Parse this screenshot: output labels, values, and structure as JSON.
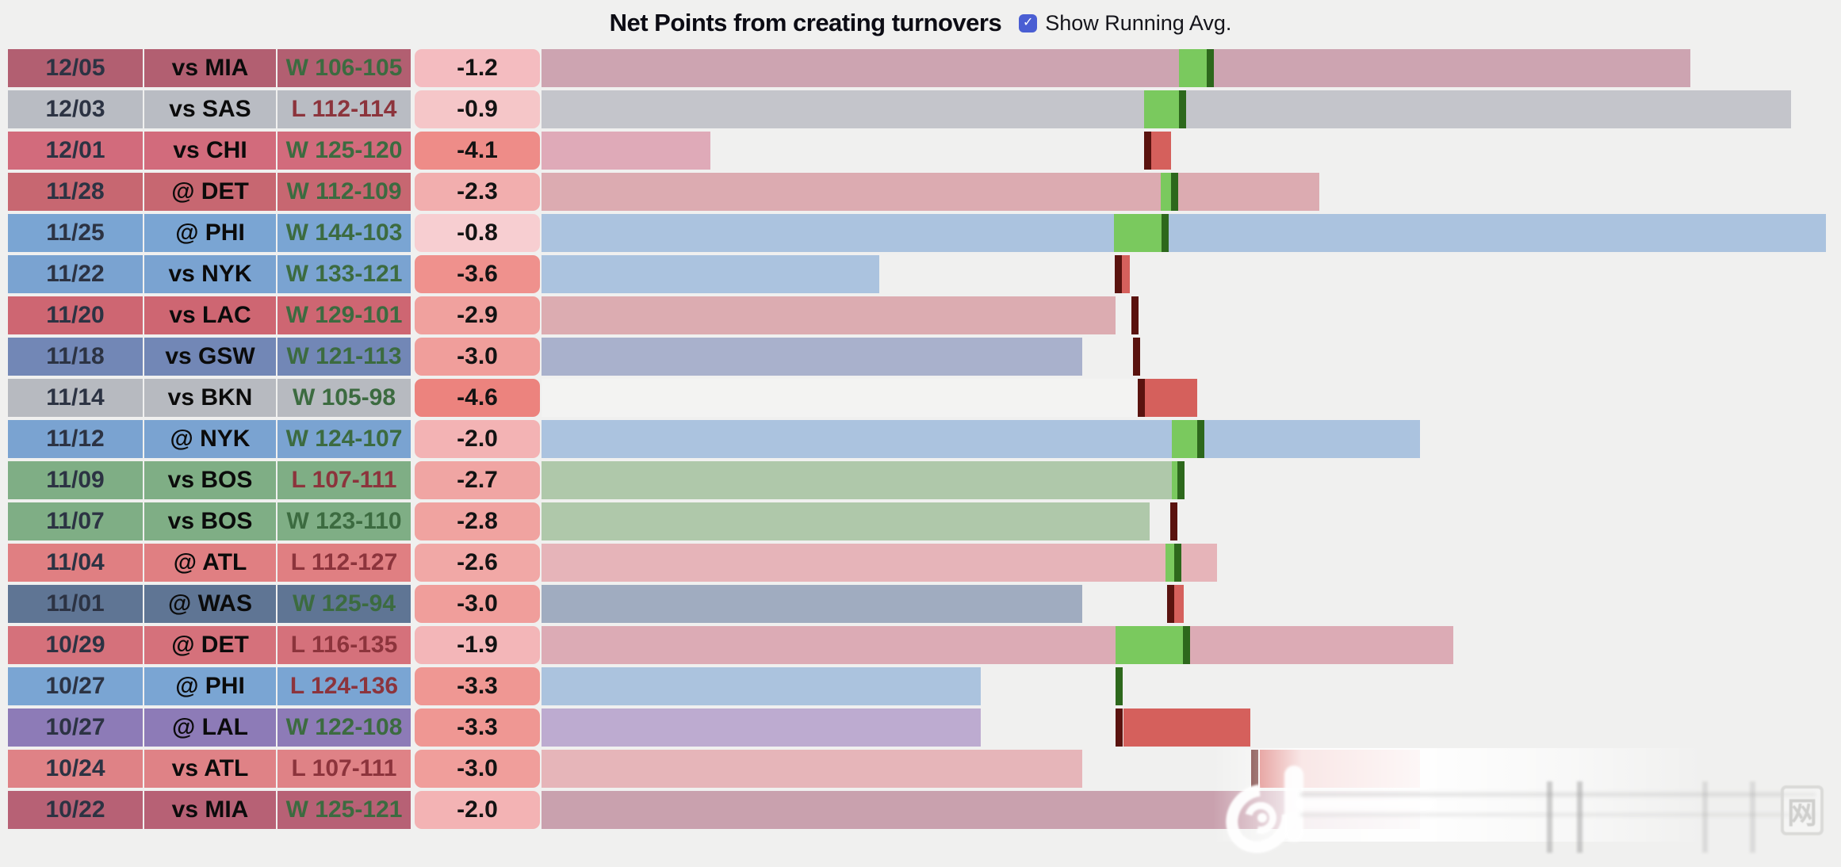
{
  "page": {
    "bg": "#f0f0ef"
  },
  "header": {
    "title": "Net Points from creating turnovers",
    "checkbox_label": "Show Running Avg.",
    "checkbox_checked": true,
    "checkbox_color": "#4a5ed3",
    "check_glyph": "✓"
  },
  "colors": {
    "seg_green": "#7ac95e",
    "line_green": "#2d681c",
    "seg_red": "#d5605c",
    "line_red": "#5a130f",
    "win_text": "#3c6b40",
    "loss_text": "#8c343c"
  },
  "watermark": {
    "grid_char": "网"
  },
  "chart_data": {
    "type": "bar",
    "title": "Net Points from creating turnovers",
    "orientation": "horizontal",
    "legend": "Show Running Avg.",
    "columns": [
      "date",
      "opponent",
      "result",
      "running_avg_value"
    ],
    "rows": [
      {
        "date": "12/05",
        "opp": "vs MIA",
        "result": "W 106-105",
        "win": true,
        "value": "-1.2",
        "team_color": "#b25f71",
        "bar_color": "#cda4b1",
        "value_bg": "#f4bcc0",
        "bar_frac": 0.8946,
        "line_frac": 0.5176,
        "line_color": "green",
        "seg_start": 0.4966,
        "seg_end": 0.5176,
        "seg_color": "green"
      },
      {
        "date": "12/03",
        "opp": "vs SAS",
        "result": "L 112-114",
        "win": false,
        "value": "-0.9",
        "team_color": "#b9bcc3",
        "bar_color": "#c4c5cb",
        "value_bg": "#f5c6c8",
        "bar_frac": 0.9729,
        "line_frac": 0.4966,
        "line_color": "green",
        "seg_start": 0.4689,
        "seg_end": 0.4966,
        "seg_color": "green"
      },
      {
        "date": "12/01",
        "opp": "vs CHI",
        "result": "W 125-120",
        "win": true,
        "value": "-4.1",
        "team_color": "#d26b7c",
        "bar_color": "#dfaab8",
        "value_bg": "#ee8c88",
        "bar_frac": 0.1314,
        "line_frac": 0.4689,
        "line_color": "red",
        "seg_start": 0.4744,
        "seg_end": 0.4904,
        "seg_color": "red"
      },
      {
        "date": "11/28",
        "opp": "@ DET",
        "result": "W 112-109",
        "win": true,
        "value": "-2.3",
        "team_color": "#c76771",
        "bar_color": "#dcabb1",
        "value_bg": "#f2aeae",
        "bar_frac": 0.6058,
        "line_frac": 0.4904,
        "line_color": "green",
        "seg_start": 0.4824,
        "seg_end": 0.4904,
        "seg_color": "green"
      },
      {
        "date": "11/25",
        "opp": "@ PHI",
        "result": "W 144-103",
        "win": true,
        "value": "-0.8",
        "team_color": "#7aa5d3",
        "bar_color": "#abc3df",
        "value_bg": "#f7ced1",
        "bar_frac": 1.0,
        "line_frac": 0.483,
        "line_color": "green",
        "seg_start": 0.4454,
        "seg_end": 0.483,
        "seg_color": "green"
      },
      {
        "date": "11/22",
        "opp": "vs NYK",
        "result": "W 133-121",
        "win": true,
        "value": "-3.6",
        "team_color": "#7aa3d1",
        "bar_color": "#abc3df",
        "value_bg": "#ef918d",
        "bar_frac": 0.2628,
        "line_frac": 0.446,
        "line_color": "red",
        "seg_start": 0.4509,
        "seg_end": 0.4583,
        "seg_color": "red"
      },
      {
        "date": "11/20",
        "opp": "vs LAC",
        "result": "W 129-101",
        "win": true,
        "value": "-2.9",
        "team_color": "#ce6672",
        "bar_color": "#dcacb1",
        "value_bg": "#f0a19e",
        "bar_frac": 0.4472,
        "line_frac": 0.459,
        "line_color": "red",
        "seg_start": null,
        "seg_end": null,
        "seg_color": null
      },
      {
        "date": "11/18",
        "opp": "vs GSW",
        "result": "W 121-113",
        "win": true,
        "value": "-3.0",
        "team_color": "#7287b6",
        "bar_color": "#a9b1cc",
        "value_bg": "#f09e9b",
        "bar_frac": 0.4207,
        "line_frac": 0.4602,
        "line_color": "red",
        "seg_start": null,
        "seg_end": null,
        "seg_color": null
      },
      {
        "date": "11/14",
        "opp": "vs BKN",
        "result": "W 105-98",
        "win": true,
        "value": "-4.6",
        "team_color": "#b7bac0",
        "bar_color": "#f3f3f2",
        "value_bg": "#ec837e",
        "bar_frac": 0.4688,
        "line_frac": 0.4645,
        "line_color": "red",
        "seg_start": 0.4695,
        "seg_end": 0.5102,
        "seg_color": "red"
      },
      {
        "date": "11/12",
        "opp": "@ NYK",
        "result": "W 124-107",
        "win": true,
        "value": "-2.0",
        "team_color": "#7aa3d1",
        "bar_color": "#abc3df",
        "value_bg": "#f3b3b4",
        "bar_frac": 0.6841,
        "line_frac": 0.5102,
        "line_color": "green",
        "seg_start": 0.491,
        "seg_end": 0.5102,
        "seg_color": "green"
      },
      {
        "date": "11/09",
        "opp": "vs BOS",
        "result": "L 107-111",
        "win": false,
        "value": "-2.7",
        "team_color": "#7fae85",
        "bar_color": "#afc8aa",
        "value_bg": "#f0a5a3",
        "bar_frac": 0.5003,
        "line_frac": 0.4948,
        "line_color": "green",
        "seg_start": 0.491,
        "seg_end": 0.4948,
        "seg_color": "green"
      },
      {
        "date": "11/07",
        "opp": "vs BOS",
        "result": "W 123-110",
        "win": true,
        "value": "-2.8",
        "team_color": "#7fae85",
        "bar_color": "#afc8aa",
        "value_bg": "#f0a3a0",
        "bar_frac": 0.4732,
        "line_frac": 0.4898,
        "line_color": "red",
        "seg_start": null,
        "seg_end": null,
        "seg_color": null
      },
      {
        "date": "11/04",
        "opp": "@ ATL",
        "result": "L 112-127",
        "win": false,
        "value": "-2.6",
        "team_color": "#e07f82",
        "bar_color": "#e6b4b9",
        "value_bg": "#f1a8a6",
        "bar_frac": 0.5262,
        "line_frac": 0.4929,
        "line_color": "green",
        "seg_start": 0.4861,
        "seg_end": 0.4929,
        "seg_color": "green"
      },
      {
        "date": "11/01",
        "opp": "@ WAS",
        "result": "W 125-94",
        "win": true,
        "value": "-3.0",
        "team_color": "#5f7594",
        "bar_color": "#a0acc0",
        "value_bg": "#f09e9b",
        "bar_frac": 0.4207,
        "line_frac": 0.487,
        "line_color": "red",
        "seg_start": 0.4926,
        "seg_end": 0.5,
        "seg_color": "red"
      },
      {
        "date": "10/29",
        "opp": "@ DET",
        "result": "L 116-135",
        "win": false,
        "value": "-1.9",
        "team_color": "#d5717b",
        "bar_color": "#dcabb5",
        "value_bg": "#f3b6b8",
        "bar_frac": 0.71,
        "line_frac": 0.4991,
        "line_color": "green",
        "seg_start": 0.4472,
        "seg_end": 0.4991,
        "seg_color": "green"
      },
      {
        "date": "10/27",
        "opp": "@ PHI",
        "result": "L 124-136",
        "win": false,
        "value": "-3.3",
        "team_color": "#7aa5d3",
        "bar_color": "#abc3de",
        "value_bg": "#ef9793",
        "bar_frac": 0.3417,
        "line_frac": 0.4472,
        "line_color": "green",
        "seg_start": null,
        "seg_end": null,
        "seg_color": null
      },
      {
        "date": "10/27",
        "opp": "@ LAL",
        "result": "W 122-108",
        "win": true,
        "value": "-3.3",
        "team_color": "#8d7bb7",
        "bar_color": "#bdabd0",
        "value_bg": "#ef9793",
        "bar_frac": 0.3417,
        "line_frac": 0.4472,
        "line_color": "red",
        "seg_start": 0.4528,
        "seg_end": 0.5521,
        "seg_color": "red"
      },
      {
        "date": "10/24",
        "opp": "vs ATL",
        "result": "L 107-111",
        "win": false,
        "value": "-3.0",
        "team_color": "#df8286",
        "bar_color": "#e6b5b9",
        "value_bg": "#f09e9b",
        "bar_frac": 0.4207,
        "line_frac": 0.5527,
        "line_color": "red",
        "seg_start": 0.5595,
        "seg_end": 0.6841,
        "seg_color": "red"
      },
      {
        "date": "10/22",
        "opp": "vs MIA",
        "result": "W 125-121",
        "win": true,
        "value": "-2.0",
        "team_color": "#b76175",
        "bar_color": "#c9a1ae",
        "value_bg": "#f3b3b4",
        "bar_frac": 0.6841,
        "line_frac": null,
        "line_color": null,
        "seg_start": null,
        "seg_end": null,
        "seg_color": null
      }
    ]
  }
}
